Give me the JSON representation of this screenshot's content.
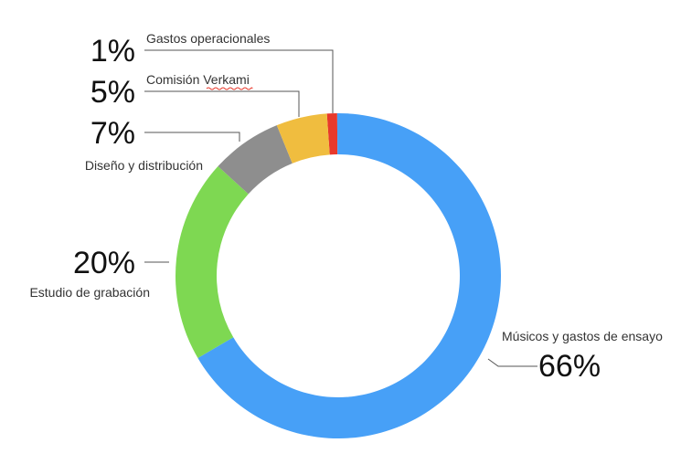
{
  "chart_data": {
    "type": "pie",
    "variant": "donut",
    "title": "",
    "slices": [
      {
        "label": "Gastos operacionales",
        "value": 1,
        "value_label": "1%",
        "color": "#E8392B"
      },
      {
        "label": "Músicos y gastos de ensayo",
        "value": 66,
        "value_label": "66%",
        "color": "#47A0F7"
      },
      {
        "label": "Estudio de grabación",
        "value": 20,
        "value_label": "20%",
        "color": "#7ED852"
      },
      {
        "label": "Diseño y distribución",
        "value": 7,
        "value_label": "7%",
        "color": "#8E8E8E"
      },
      {
        "label": "Comisión Verkami",
        "value": 5,
        "value_label": "5%",
        "color": "#F0BD3F"
      }
    ]
  }
}
